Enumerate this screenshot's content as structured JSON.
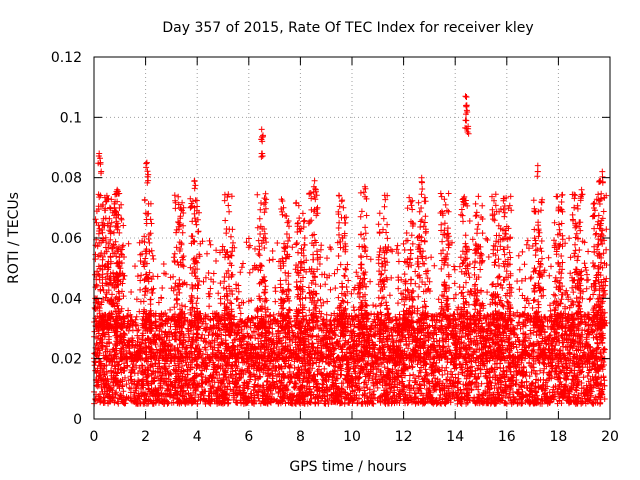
{
  "chart_data": {
    "type": "scatter",
    "title": "Day 357 of 2015, Rate Of TEC Index for receiver kley",
    "xlabel": "GPS time / hours",
    "ylabel": "ROTI / TECUs",
    "xlim": [
      0,
      20
    ],
    "ylim": [
      0,
      0.12
    ],
    "x_ticks": [
      0,
      2,
      4,
      6,
      8,
      10,
      12,
      14,
      16,
      18,
      20
    ],
    "y_ticks": [
      0,
      0.02,
      0.04,
      0.06,
      0.08,
      0.1,
      0.12
    ],
    "x_tick_labels": [
      "0",
      "2",
      "4",
      "6",
      "8",
      "10",
      "12",
      "14",
      "16",
      "18",
      "20"
    ],
    "y_tick_labels": [
      "0",
      "0.02",
      "0.04",
      "0.06",
      "0.08",
      "0.1",
      "0.12"
    ],
    "grid": true,
    "marker": "+",
    "series": [
      {
        "name": "ROTI",
        "color": "#ff0000",
        "x_range": [
          0,
          19.8
        ],
        "baseline_range": [
          0.005,
          0.035
        ],
        "notable_points": [
          {
            "x": 0.2,
            "y": 0.088
          },
          {
            "x": 0.25,
            "y": 0.085
          },
          {
            "x": 0.5,
            "y": 0.074
          },
          {
            "x": 0.8,
            "y": 0.07
          },
          {
            "x": 0.9,
            "y": 0.076
          },
          {
            "x": 2.05,
            "y": 0.085
          },
          {
            "x": 2.1,
            "y": 0.081
          },
          {
            "x": 3.3,
            "y": 0.065
          },
          {
            "x": 3.9,
            "y": 0.079
          },
          {
            "x": 6.5,
            "y": 0.096
          },
          {
            "x": 6.55,
            "y": 0.094
          },
          {
            "x": 6.5,
            "y": 0.088
          },
          {
            "x": 8.55,
            "y": 0.079
          },
          {
            "x": 8.6,
            "y": 0.076
          },
          {
            "x": 10.5,
            "y": 0.077
          },
          {
            "x": 12.7,
            "y": 0.08
          },
          {
            "x": 14.4,
            "y": 0.107
          },
          {
            "x": 14.45,
            "y": 0.104
          },
          {
            "x": 14.4,
            "y": 0.099
          },
          {
            "x": 14.5,
            "y": 0.097
          },
          {
            "x": 17.2,
            "y": 0.084
          },
          {
            "x": 19.7,
            "y": 0.082
          },
          {
            "x": 19.6,
            "y": 0.079
          },
          {
            "x": 18.9,
            "y": 0.076
          }
        ]
      }
    ]
  }
}
